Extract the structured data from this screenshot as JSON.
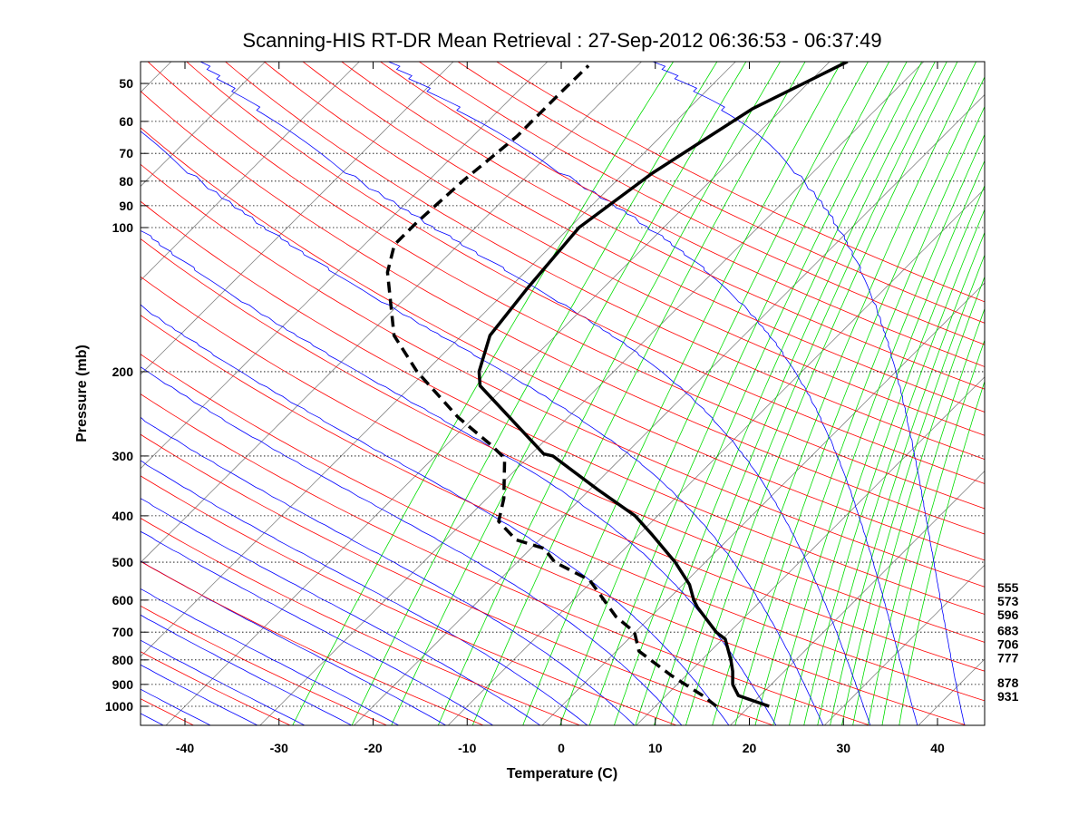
{
  "chart_data": {
    "type": "line",
    "subtype": "skew-t log-p",
    "title": "Scanning-HIS RT-DR Mean Retrieval : 27-Sep-2012 06:36:53 - 06:37:49",
    "xlabel": "Temperature (C)",
    "ylabel": "Pressure (mb)",
    "xlim": [
      -45,
      45
    ],
    "ylim": [
      1100,
      45
    ],
    "x_ticks": [
      -40,
      -30,
      -20,
      -10,
      0,
      10,
      20,
      30,
      40
    ],
    "y_ticks": [
      50,
      60,
      70,
      80,
      90,
      100,
      200,
      300,
      400,
      500,
      600,
      700,
      800,
      900,
      1000
    ],
    "grid": "dotted horizontal at pressure ticks",
    "right_labels": [
      {
        "text": "555",
        "p": 555
      },
      {
        "text": "573",
        "p": 573
      },
      {
        "text": "596",
        "p": 596
      },
      {
        "text": "683",
        "p": 683
      },
      {
        "text": "706",
        "p": 706
      },
      {
        "text": "777",
        "p": 777
      },
      {
        "text": "878",
        "p": 878
      },
      {
        "text": "931",
        "p": 931
      }
    ],
    "series": [
      {
        "name": "Temperature",
        "style": "solid",
        "color": "#000000",
        "points": [
          [
            1000,
            22.1
          ],
          [
            950,
            17.7
          ],
          [
            900,
            15.9
          ],
          [
            845,
            14.5
          ],
          [
            800,
            13.1
          ],
          [
            724,
            10.3
          ],
          [
            700,
            8.6
          ],
          [
            622,
            4.0
          ],
          [
            600,
            2.8
          ],
          [
            557,
            0.7
          ],
          [
            500,
            -3.2
          ],
          [
            439,
            -8.5
          ],
          [
            400,
            -12.4
          ],
          [
            353,
            -19.1
          ],
          [
            300,
            -27.5
          ],
          [
            297,
            -28.7
          ],
          [
            214,
            -42.7
          ],
          [
            200,
            -44.3
          ],
          [
            168,
            -47.0
          ],
          [
            135,
            -48.0
          ],
          [
            100,
            -49.0
          ],
          [
            77,
            -47.0
          ],
          [
            56.5,
            -43.2
          ],
          [
            45,
            -38.1
          ]
        ]
      },
      {
        "name": "Dewpoint",
        "style": "dashed",
        "color": "#000000",
        "points": [
          [
            1000,
            16.5
          ],
          [
            950,
            13.9
          ],
          [
            862,
            8.4
          ],
          [
            767,
            2.4
          ],
          [
            700,
            -0.1
          ],
          [
            650,
            -3.7
          ],
          [
            545,
            -10.4
          ],
          [
            500,
            -16.0
          ],
          [
            468,
            -18.6
          ],
          [
            449,
            -22.5
          ],
          [
            411,
            -26.3
          ],
          [
            368,
            -28.2
          ],
          [
            303,
            -32.4
          ],
          [
            283,
            -35.5
          ],
          [
            249,
            -41.7
          ],
          [
            200,
            -50.9
          ],
          [
            168,
            -57.2
          ],
          [
            124,
            -64.6
          ],
          [
            108.6,
            -66.8
          ],
          [
            97.4,
            -66.8
          ],
          [
            80,
            -66.3
          ],
          [
            64.5,
            -65.3
          ],
          [
            52,
            -65.3
          ],
          [
            45.9,
            -65.2
          ]
        ]
      }
    ],
    "background_lines": {
      "isotherms_color": "#808080",
      "dry_adiabats_color": "#ff0000",
      "moist_adiabats_color": "#0000ff",
      "mixing_ratio_color": "#00dd00"
    }
  }
}
